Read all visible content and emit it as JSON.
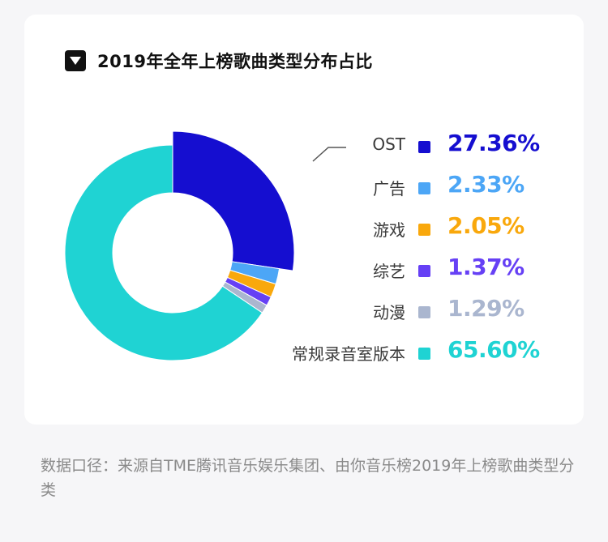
{
  "title": "2019年全年上榜歌曲类型分布占比",
  "note": "数据口径：来源自TME腾讯音乐娱乐集团、由你音乐榜2019年上榜歌曲类型分类",
  "icons": {
    "title_icon": "triangle-down-icon"
  },
  "chart_data": {
    "type": "pie",
    "title": "2019年全年上榜歌曲类型分布占比",
    "donut": true,
    "categories": [
      "OST",
      "广告",
      "游戏",
      "综艺",
      "动漫",
      "常规录音室版本"
    ],
    "values": [
      27.36,
      2.33,
      2.05,
      1.37,
      1.29,
      65.6
    ],
    "value_labels": [
      "27.36%",
      "2.33%",
      "2.05%",
      "1.37%",
      "1.29%",
      "65.60%"
    ],
    "colors": [
      "#150ed0",
      "#4ca6f6",
      "#f9a80c",
      "#6640f5",
      "#aab6cf",
      "#1fd3d3"
    ],
    "highlight": "OST",
    "legend_position": "right"
  }
}
